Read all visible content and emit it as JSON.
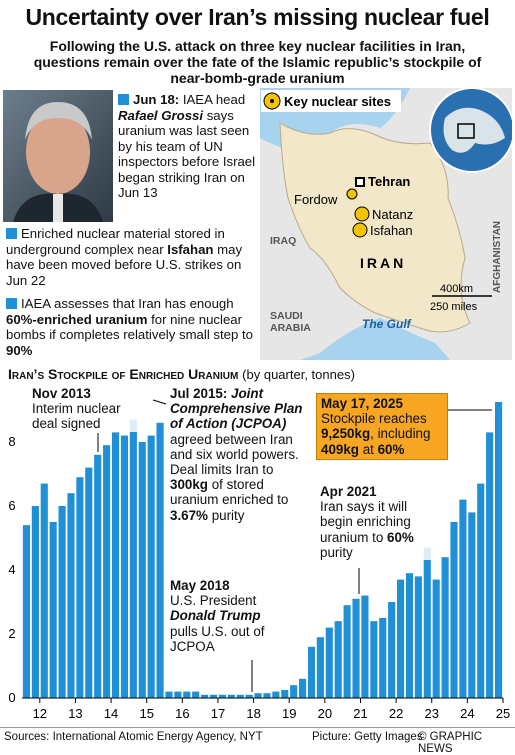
{
  "header": {
    "title": "Uncertainty over Iran’s missing nuclear fuel",
    "subtitle": "Following the U.S. attack on three key nuclear facilities in Iran, questions remain over the fate of the Islamic republic’s stockpile of near-bomb-grade uranium"
  },
  "bullets": [
    {
      "parts": [
        "Jun 18:",
        " IAEA head ",
        "Rafael Grossi",
        " says uranium was last seen by his team of UN inspectors before Israel began striking Iran on Jun 13"
      ]
    },
    {
      "parts": [
        "Enriched nuclear material stored in underground complex near ",
        "Isfahan",
        " may have been moved before U.S. strikes on Jun 22"
      ]
    },
    {
      "parts": [
        "IAEA assesses that Iran has enough ",
        "60%-enriched uranium",
        " for nine nuclear bombs if completes relatively small step to ",
        "90%"
      ]
    }
  ],
  "map": {
    "legend": "Key nuclear sites",
    "capital": "Tehran",
    "sites": [
      "Fordow",
      "Natanz",
      "Isfahan"
    ],
    "country": "IRAN",
    "neighbors": [
      "IRAQ",
      "SAUDI ARABIA",
      "AFGHANISTAN"
    ],
    "sea": "The Gulf",
    "scale": [
      "400km",
      "250 miles"
    ]
  },
  "chart_data": {
    "type": "bar",
    "title": "Iran’s Stockpile of Enriched Uranium",
    "subtitle": "(by quarter, tonnes)",
    "color": "#1f8fd6",
    "x": [
      2012.125,
      2012.375,
      2012.625,
      2012.875,
      2013.125,
      2013.375,
      2013.625,
      2013.875,
      2014.125,
      2014.375,
      2014.625,
      2014.875,
      2015.125,
      2015.375,
      2015.625,
      2015.875,
      2016.125,
      2016.375,
      2016.625,
      2016.875,
      2017.125,
      2017.375,
      2017.625,
      2017.875,
      2018.125,
      2018.375,
      2018.625,
      2018.875,
      2019.125,
      2019.375,
      2019.625,
      2019.875,
      2020.125,
      2020.375,
      2020.625,
      2020.875,
      2021.125,
      2021.375,
      2021.625,
      2021.875,
      2022.125,
      2022.375,
      2022.625,
      2022.875,
      2023.125,
      2023.375,
      2023.625,
      2023.875,
      2024.125,
      2024.375,
      2024.625,
      2024.875,
      2025.125,
      2025.375
    ],
    "values": [
      5.4,
      6.0,
      6.7,
      5.5,
      6.0,
      6.4,
      6.9,
      7.2,
      7.6,
      7.9,
      8.3,
      8.2,
      8.7,
      8.0,
      8.2,
      8.6,
      0.2,
      0.2,
      0.2,
      0.2,
      0.1,
      0.1,
      0.1,
      0.1,
      0.1,
      0.1,
      0.15,
      0.15,
      0.2,
      0.25,
      0.4,
      0.6,
      1.6,
      1.9,
      2.2,
      2.4,
      2.9,
      3.1,
      3.2,
      2.4,
      2.5,
      3.0,
      3.7,
      3.9,
      3.8,
      4.7,
      3.7,
      4.4,
      5.5,
      6.2,
      5.8,
      6.7,
      8.3,
      9.25
    ],
    "xlim": [
      2012,
      2025.5
    ],
    "xticks": [
      {
        "value": 2012.5,
        "label": "12"
      },
      {
        "value": 2013.5,
        "label": "13"
      },
      {
        "value": 2014.5,
        "label": "14"
      },
      {
        "value": 2015.5,
        "label": "15"
      },
      {
        "value": 2016.5,
        "label": "16"
      },
      {
        "value": 2017.5,
        "label": "17"
      },
      {
        "value": 2018.5,
        "label": "18"
      },
      {
        "value": 2019.5,
        "label": "19"
      },
      {
        "value": 2020.5,
        "label": "20"
      },
      {
        "value": 2021.5,
        "label": "21"
      },
      {
        "value": 2022.5,
        "label": "22"
      },
      {
        "value": 2023.5,
        "label": "23"
      },
      {
        "value": 2024.5,
        "label": "24"
      },
      {
        "value": 2025.5,
        "label": "25"
      }
    ],
    "ylim": [
      0,
      9.5
    ],
    "yticks": [
      0,
      2,
      4,
      6,
      8
    ],
    "grid": false,
    "annotations": [
      {
        "parts": [
          "Nov 2013",
          "Interim nuclear deal signed"
        ]
      },
      {
        "parts": [
          "Jul 2015:",
          " Joint Comprehensive Plan of Action (JCPOA)",
          " agreed between Iran and six world powers. Deal limits Iran to ",
          "300kg",
          " of stored uranium enriched to ",
          "3.67%",
          " purity"
        ]
      },
      {
        "parts": [
          "May 2018",
          "U.S. President ",
          "Donald Trump",
          " pulls U.S. out of JCPOA"
        ]
      },
      {
        "parts": [
          "Apr 2021",
          "Iran says it will begin enriching uranium to ",
          "60%",
          " purity"
        ]
      },
      {
        "parts": [
          "May 17, 2025",
          "Stockpile reaches ",
          "9,250kg",
          ", including ",
          "409kg",
          " at ",
          "60%"
        ]
      }
    ]
  },
  "footer": {
    "sources": "Sources: International Atomic Energy Agency, NYT",
    "picture": "Picture: Getty Images",
    "credit": "© GRAPHIC NEWS"
  }
}
